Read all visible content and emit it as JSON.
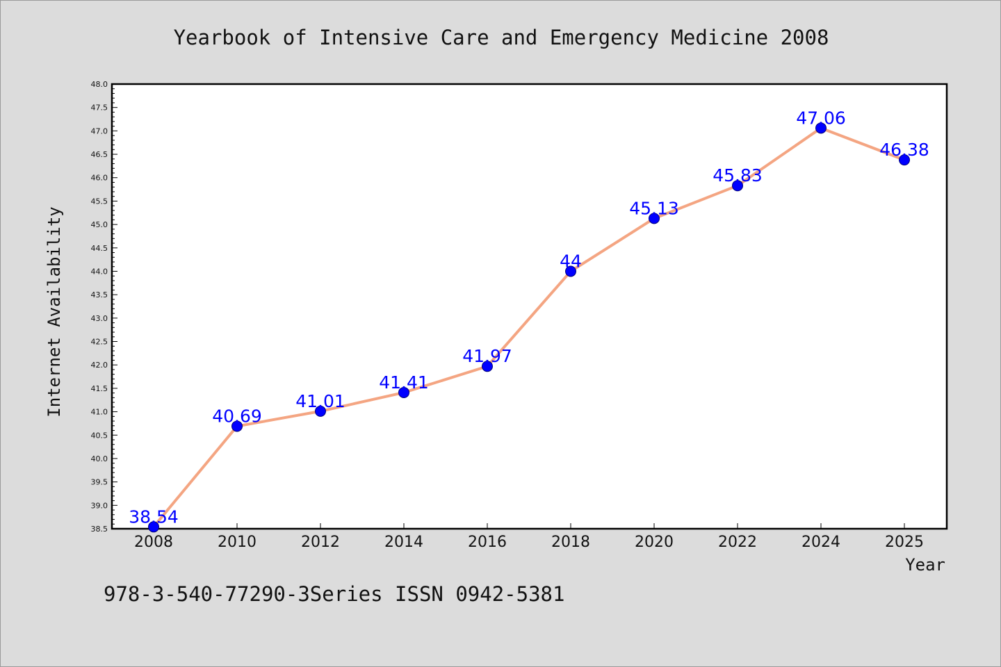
{
  "footnote": "978-3-540-77290-3Series ISSN 0942-5381",
  "colors": {
    "background": "#dcdcdc",
    "plot_background": "#ffffff",
    "line": "#f4a582",
    "marker": "#0000ff",
    "data_label": "#0000ff"
  },
  "chart_data": {
    "type": "line",
    "title": "Yearbook of Intensive Care and Emergency Medicine 2008",
    "xlabel": "Year",
    "ylabel": "Internet Availability",
    "categories": [
      "2008",
      "2010",
      "2012",
      "2014",
      "2016",
      "2018",
      "2020",
      "2022",
      "2024",
      "2025"
    ],
    "series": [
      {
        "values": [
          38.54,
          40.69,
          41.01,
          41.41,
          41.97,
          44,
          45.13,
          45.83,
          47.06,
          46.38
        ]
      }
    ],
    "data_labels": [
      "38.54",
      "40.69",
      "41.01",
      "41.41",
      "41.97",
      "44",
      "45.13",
      "45.83",
      "47.06",
      "46.38"
    ],
    "ylim": [
      38.5,
      48.0
    ],
    "yticks": [
      "38.5",
      "39.0",
      "39.5",
      "40.0",
      "40.5",
      "41.0",
      "41.5",
      "42.0",
      "42.5",
      "43.0",
      "43.5",
      "44.0",
      "44.5",
      "45.0",
      "45.5",
      "46.0",
      "46.5",
      "47.0",
      "47.5",
      "48.0"
    ],
    "grid": false,
    "legend": "none"
  }
}
